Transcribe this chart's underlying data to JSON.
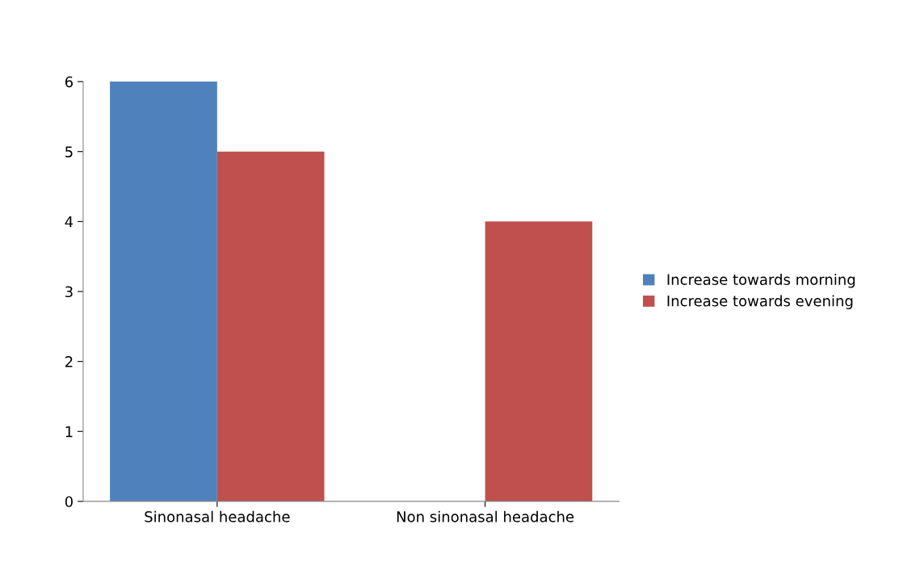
{
  "chart_data": {
    "type": "bar",
    "categories": [
      "Sinonasal headache",
      "Non sinonasal headache"
    ],
    "series": [
      {
        "name": "Increase towards morning",
        "color": "#4f81bd",
        "values": [
          6,
          0
        ]
      },
      {
        "name": "Increase towards evening",
        "color": "#c0504d",
        "values": [
          5,
          4
        ]
      }
    ],
    "ylim": [
      0,
      6
    ],
    "yticks": [
      0,
      1,
      2,
      3,
      4,
      5,
      6
    ],
    "grid": false,
    "legend": "right"
  }
}
